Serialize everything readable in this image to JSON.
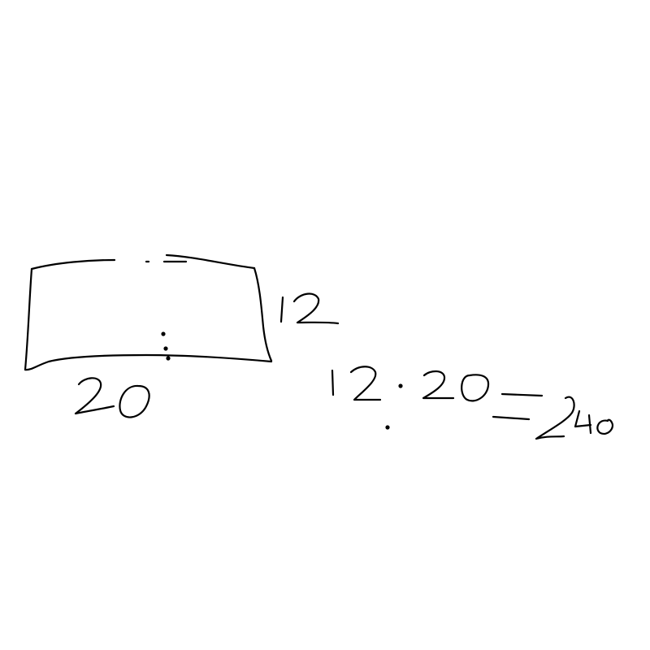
{
  "rectangle": {
    "side_label": "12",
    "bottom_label": "20"
  },
  "equation": {
    "left": "12",
    "operator": "·",
    "right": "20",
    "equals": "=",
    "result": "240"
  },
  "colors": {
    "ink": "#000000",
    "background": "#ffffff"
  }
}
